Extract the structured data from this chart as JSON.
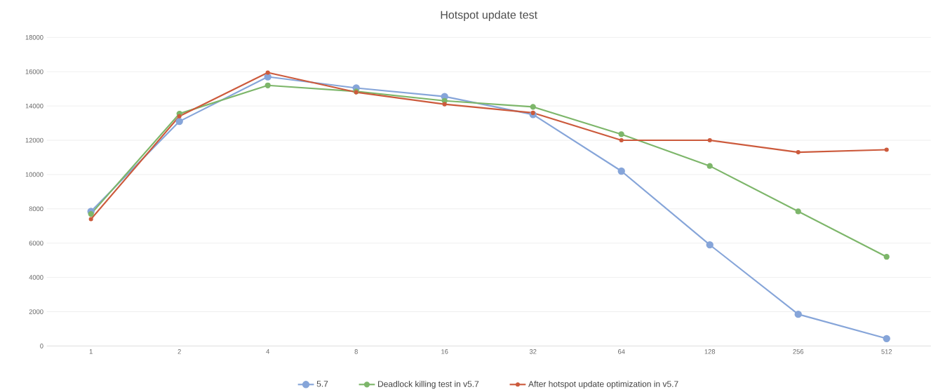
{
  "chart_data": {
    "type": "line",
    "title": "Hotspot update test",
    "categories": [
      "1",
      "2",
      "4",
      "8",
      "16",
      "32",
      "64",
      "128",
      "256",
      "512"
    ],
    "series": [
      {
        "name": "5.7",
        "color": "#86a5d9",
        "values": [
          7850,
          13100,
          15700,
          15050,
          14550,
          13500,
          10200,
          5900,
          1850,
          430
        ]
      },
      {
        "name": "Deadlock killing test in v5.7",
        "color": "#7db66a",
        "values": [
          7700,
          13550,
          15200,
          14850,
          14300,
          13950,
          12350,
          10500,
          7850,
          5200
        ]
      },
      {
        "name": "After hotspot update optimization in v5.7",
        "color": "#cc5a3c",
        "values": [
          7400,
          13400,
          15950,
          14800,
          14100,
          13600,
          12000,
          12000,
          11300,
          11450
        ]
      }
    ],
    "ylim": [
      0,
      18000
    ],
    "yticks": [
      0,
      2000,
      4000,
      6000,
      8000,
      10000,
      12000,
      14000,
      16000,
      18000
    ],
    "grid": "y",
    "legend": "bottom",
    "marker": "circle",
    "line_style": "solid"
  }
}
